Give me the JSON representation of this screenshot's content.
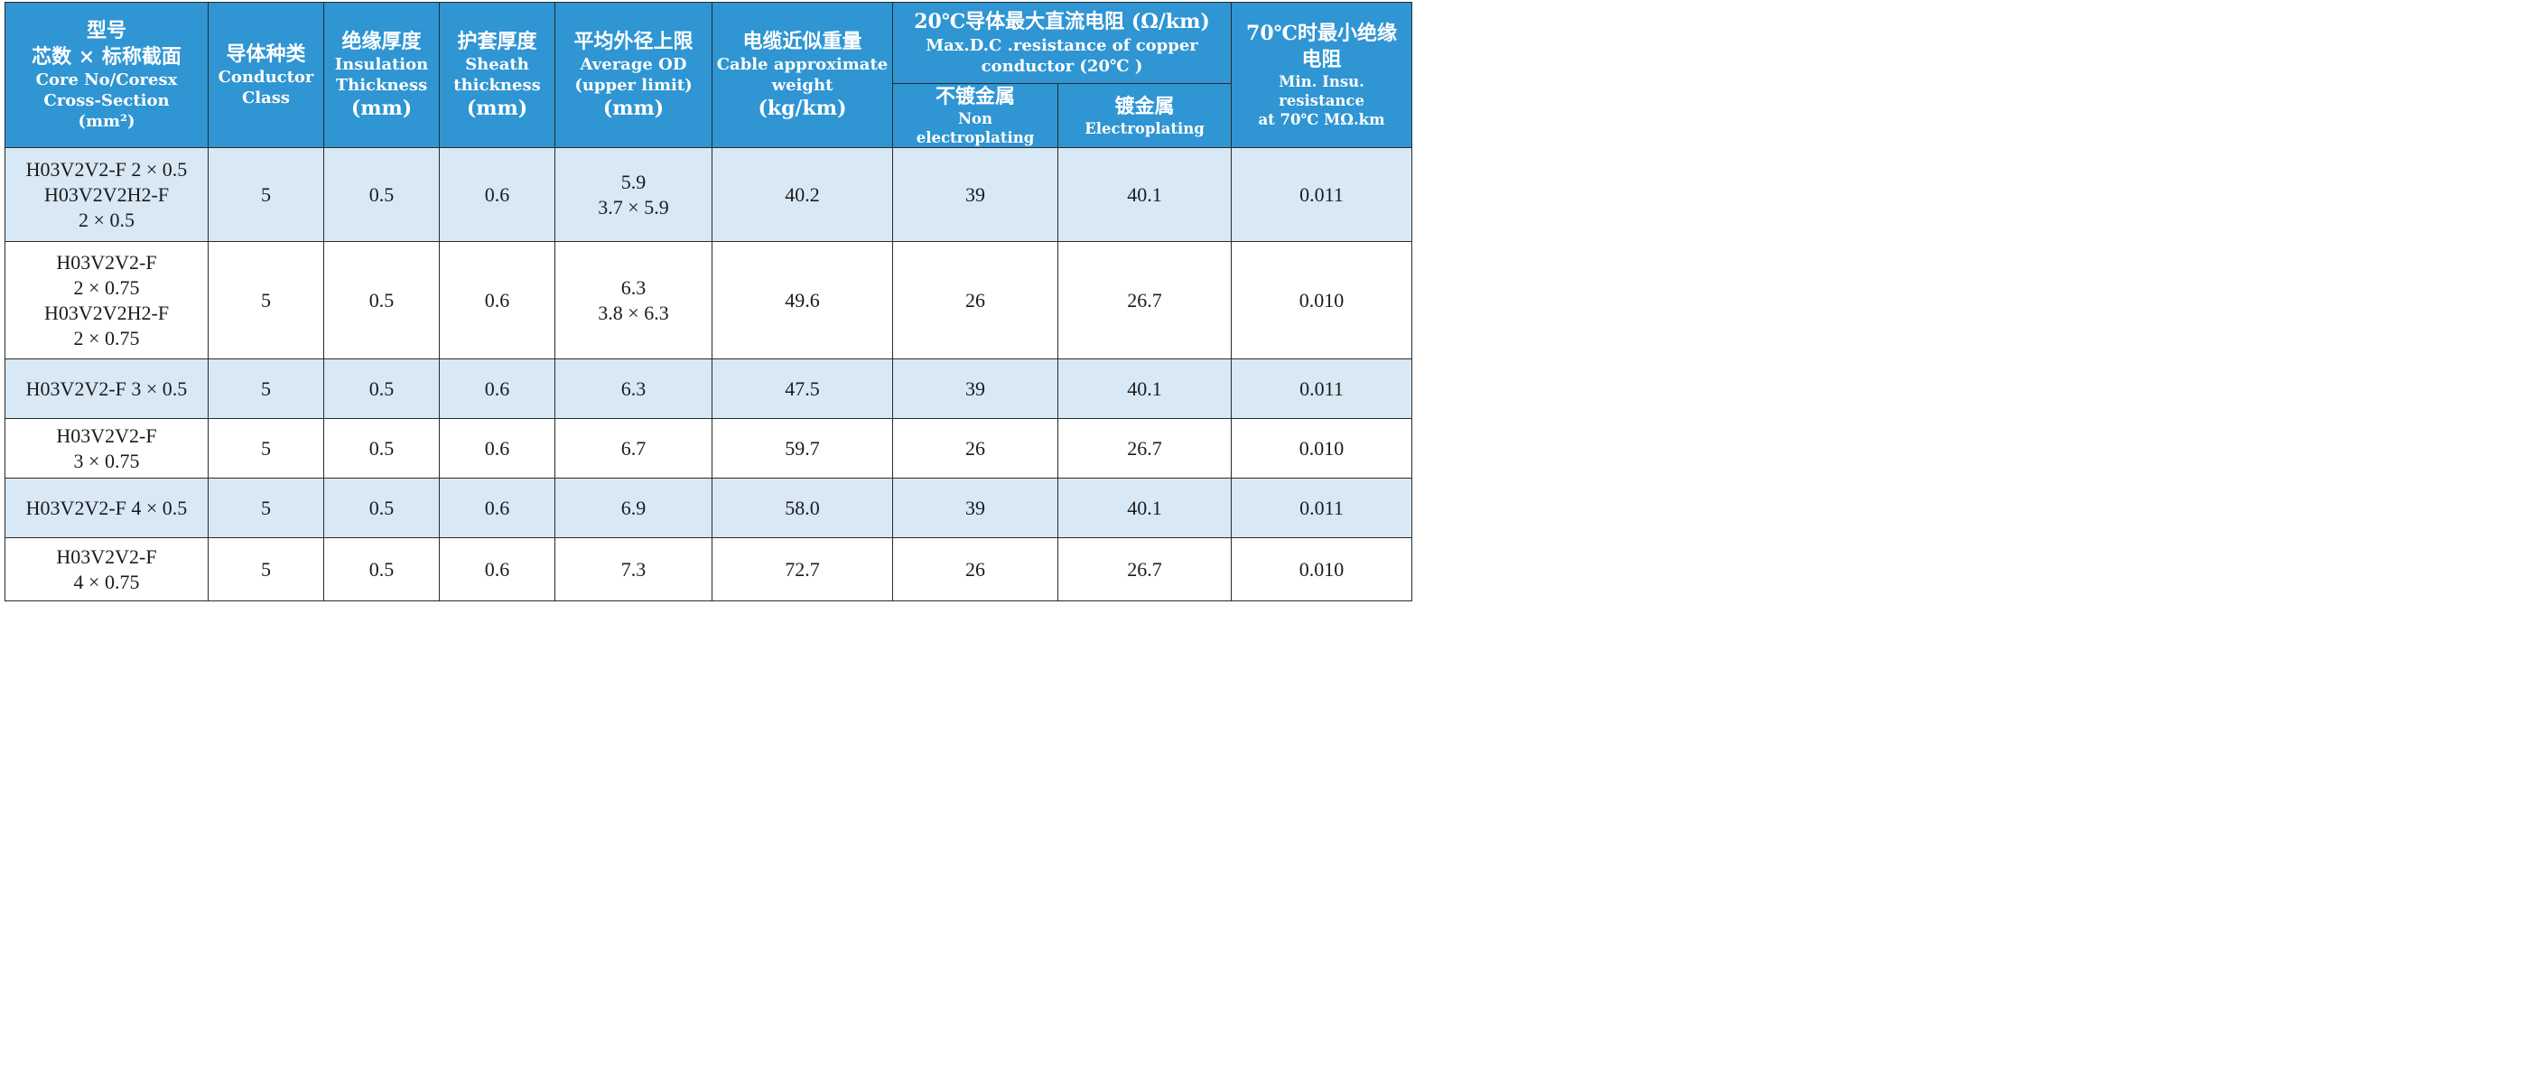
{
  "header": {
    "model": [
      "型号",
      "芯数 × 标称截面",
      "Core No/Coresx",
      "Cross-Section",
      "(mm²)"
    ],
    "conductor_class": [
      "导体种类",
      "Conductor",
      "Class"
    ],
    "insulation": [
      "绝缘厚度",
      "Insulation",
      "Thickness",
      "(mm)"
    ],
    "sheath": [
      "护套厚度",
      "Sheath",
      "thickness",
      "(mm)"
    ],
    "avg_od": [
      "平均外径上限",
      "Average OD",
      "(upper limit)",
      "(mm)"
    ],
    "weight": [
      "电缆近似重量",
      "Cable approximate",
      "weight",
      "(kg/km)"
    ],
    "resistance": [
      "20℃导体最大直流电阻 (Ω/km)",
      "Max.D.C .resistance of copper",
      "conductor (20℃ )"
    ],
    "non_plated": [
      "不镀金属",
      "Non electroplating"
    ],
    "plated": [
      "镀金属",
      "Electroplating"
    ],
    "insu_resistance": [
      "70℃时最小绝缘",
      "电阻",
      "Min. Insu. resistance",
      "at 70℃ MΩ.km"
    ]
  },
  "rows": [
    {
      "model": [
        "H03V2V2-F 2 × 0.5",
        "H03V2V2H2-F",
        "2 × 0.5"
      ],
      "conductor_class": "5",
      "insulation": "0.5",
      "sheath": "0.6",
      "avg_od": [
        "5.9",
        "3.7 × 5.9"
      ],
      "weight": "40.2",
      "non_plated": "39",
      "plated": "40.1",
      "insu_resistance": "0.011"
    },
    {
      "model": [
        "H03V2V2-F",
        "2 × 0.75",
        "H03V2V2H2-F",
        "2 × 0.75"
      ],
      "conductor_class": "5",
      "insulation": "0.5",
      "sheath": "0.6",
      "avg_od": [
        "6.3",
        "3.8 × 6.3"
      ],
      "weight": "49.6",
      "non_plated": "26",
      "plated": "26.7",
      "insu_resistance": "0.010"
    },
    {
      "model": [
        "H03V2V2-F 3 × 0.5"
      ],
      "conductor_class": "5",
      "insulation": "0.5",
      "sheath": "0.6",
      "avg_od": [
        "6.3"
      ],
      "weight": "47.5",
      "non_plated": "39",
      "plated": "40.1",
      "insu_resistance": "0.011"
    },
    {
      "model": [
        "H03V2V2-F",
        "3 × 0.75"
      ],
      "conductor_class": "5",
      "insulation": "0.5",
      "sheath": "0.6",
      "avg_od": [
        "6.7"
      ],
      "weight": "59.7",
      "non_plated": "26",
      "plated": "26.7",
      "insu_resistance": "0.010"
    },
    {
      "model": [
        "H03V2V2-F 4 × 0.5"
      ],
      "conductor_class": "5",
      "insulation": "0.5",
      "sheath": "0.6",
      "avg_od": [
        "6.9"
      ],
      "weight": "58.0",
      "non_plated": "39",
      "plated": "40.1",
      "insu_resistance": "0.011"
    },
    {
      "model": [
        "H03V2V2-F",
        "4 × 0.75"
      ],
      "conductor_class": "5",
      "insulation": "0.5",
      "sheath": "0.6",
      "avg_od": [
        "7.3"
      ],
      "weight": "72.7",
      "non_plated": "26",
      "plated": "26.7",
      "insu_resistance": "0.010"
    }
  ],
  "colors": {
    "header_bg": "#2f95d3",
    "header_text": "#ffffff",
    "row_alt_bg": "#d8e8f5",
    "row_plain_bg": "#ffffff",
    "border": "#2a2a2a"
  }
}
